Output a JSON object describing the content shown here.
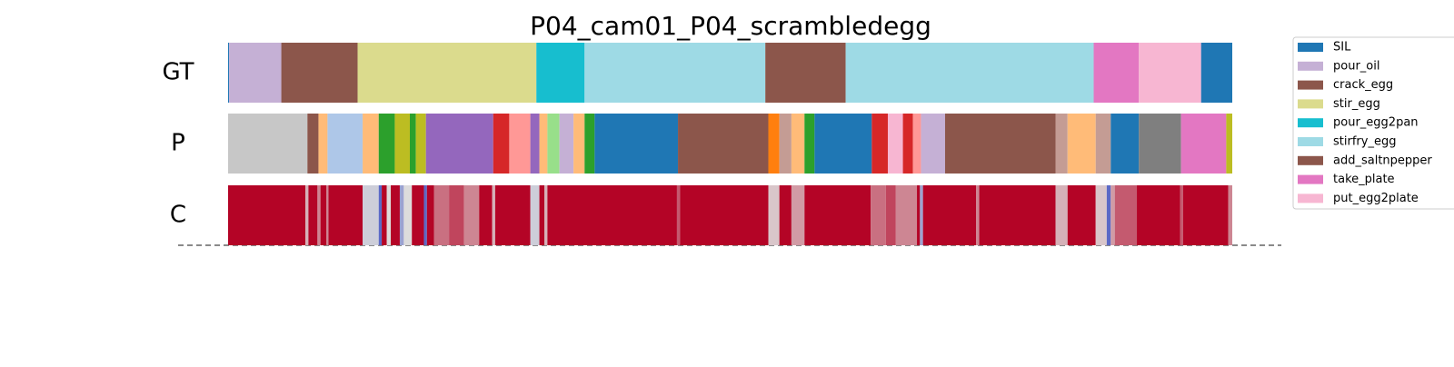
{
  "chart_data": {
    "type": "segmentation",
    "title": "P04_cam01_P04_scrambledegg",
    "xlim": [
      0,
      100
    ],
    "legend": [
      {
        "name": "SIL",
        "color": "#1f77b4"
      },
      {
        "name": "pour_oil",
        "color": "#c5b0d5"
      },
      {
        "name": "crack_egg",
        "color": "#8c564b"
      },
      {
        "name": "stir_egg",
        "color": "#dbdb8d"
      },
      {
        "name": "pour_egg2pan",
        "color": "#17becf"
      },
      {
        "name": "stirfry_egg",
        "color": "#9edae5"
      },
      {
        "name": "add_saltnpepper",
        "color": "#8c564b"
      },
      {
        "name": "take_plate",
        "color": "#e377c2"
      },
      {
        "name": "put_egg2plate",
        "color": "#f7b6d2"
      }
    ],
    "rows": [
      {
        "label": "GT",
        "segments": [
          {
            "start": 0,
            "end": 0.1,
            "class": 0
          },
          {
            "start": 0.1,
            "end": 5.3,
            "class": 1
          },
          {
            "start": 5.3,
            "end": 12.9,
            "class": 2
          },
          {
            "start": 12.9,
            "end": 30.7,
            "class": 3
          },
          {
            "start": 30.7,
            "end": 35.5,
            "class": 4
          },
          {
            "start": 35.5,
            "end": 53.5,
            "class": 5
          },
          {
            "start": 53.5,
            "end": 61.5,
            "class": 6
          },
          {
            "start": 61.5,
            "end": 86.2,
            "class": 5
          },
          {
            "start": 86.2,
            "end": 90.7,
            "class": 7
          },
          {
            "start": 90.7,
            "end": 96.9,
            "class": 8
          },
          {
            "start": 96.9,
            "end": 100,
            "class": 0
          }
        ]
      },
      {
        "label": "P",
        "segments": [
          {
            "start": 0,
            "end": 7.9,
            "color": "#c7c7c7"
          },
          {
            "start": 7.9,
            "end": 9.0,
            "color": "#8c564b"
          },
          {
            "start": 9.0,
            "end": 9.9,
            "color": "#ffbb78"
          },
          {
            "start": 9.9,
            "end": 13.4,
            "color": "#aec7e8"
          },
          {
            "start": 13.4,
            "end": 15.0,
            "color": "#ffbb78"
          },
          {
            "start": 15.0,
            "end": 16.6,
            "color": "#2ca02c"
          },
          {
            "start": 16.6,
            "end": 18.1,
            "color": "#bcbd22"
          },
          {
            "start": 18.1,
            "end": 18.7,
            "color": "#2ca02c"
          },
          {
            "start": 18.7,
            "end": 19.7,
            "color": "#bcbd22"
          },
          {
            "start": 19.7,
            "end": 26.4,
            "color": "#9467bd"
          },
          {
            "start": 26.4,
            "end": 28.0,
            "color": "#d62728"
          },
          {
            "start": 28.0,
            "end": 30.1,
            "color": "#ff9896"
          },
          {
            "start": 30.1,
            "end": 31.0,
            "color": "#9467bd"
          },
          {
            "start": 31.0,
            "end": 31.8,
            "color": "#ffbb78"
          },
          {
            "start": 31.8,
            "end": 33.0,
            "color": "#98df8a"
          },
          {
            "start": 33.0,
            "end": 34.4,
            "color": "#c5b0d5"
          },
          {
            "start": 34.4,
            "end": 35.5,
            "color": "#ffbb78"
          },
          {
            "start": 35.5,
            "end": 36.5,
            "color": "#2ca02c"
          },
          {
            "start": 36.5,
            "end": 44.8,
            "color": "#1f77b4"
          },
          {
            "start": 44.8,
            "end": 53.8,
            "color": "#8c564b"
          },
          {
            "start": 53.8,
            "end": 54.9,
            "color": "#ff7f0e"
          },
          {
            "start": 54.9,
            "end": 56.1,
            "color": "#c49c94"
          },
          {
            "start": 56.1,
            "end": 57.4,
            "color": "#ffbb78"
          },
          {
            "start": 57.4,
            "end": 58.4,
            "color": "#2ca02c"
          },
          {
            "start": 58.4,
            "end": 64.1,
            "color": "#1f77b4"
          },
          {
            "start": 64.1,
            "end": 65.7,
            "color": "#d62728"
          },
          {
            "start": 65.7,
            "end": 67.2,
            "color": "#f7b6d2"
          },
          {
            "start": 67.2,
            "end": 68.2,
            "color": "#d62728"
          },
          {
            "start": 68.2,
            "end": 69.0,
            "color": "#ff9896"
          },
          {
            "start": 69.0,
            "end": 71.4,
            "color": "#c5b0d5"
          },
          {
            "start": 71.4,
            "end": 82.4,
            "color": "#8c564b"
          },
          {
            "start": 82.4,
            "end": 83.6,
            "color": "#c49c94"
          },
          {
            "start": 83.6,
            "end": 86.4,
            "color": "#ffbb78"
          },
          {
            "start": 86.4,
            "end": 87.9,
            "color": "#c49c94"
          },
          {
            "start": 87.9,
            "end": 90.7,
            "color": "#1f77b4"
          },
          {
            "start": 90.7,
            "end": 94.9,
            "color": "#7f7f7f"
          },
          {
            "start": 94.9,
            "end": 99.4,
            "color": "#e377c2"
          },
          {
            "start": 99.4,
            "end": 100,
            "color": "#bcbd22"
          }
        ]
      },
      {
        "label": "C",
        "confidence": {
          "x": [
            0,
            7.7,
            8.0,
            8.9,
            9.2,
            9.8,
            10.0,
            13.4,
            15.0,
            15.3,
            15.8,
            16.2,
            17.1,
            17.5,
            18.3,
            19.5,
            19.8,
            20.5,
            22.0,
            23.5,
            25.0,
            26.3,
            26.6,
            30.1,
            31.0,
            31.5,
            31.8,
            44.7,
            45.0,
            53.8,
            54.9,
            56.1,
            57.4,
            64.0,
            65.5,
            66.5,
            68.6,
            68.9,
            69.2,
            74.5,
            74.8,
            82.4,
            83.6,
            86.4,
            87.5,
            87.9,
            88.3,
            90.5,
            94.8,
            95.1,
            99.6
          ],
          "values": [
            1,
            0.6,
            1,
            0.7,
            1,
            0.7,
            1,
            0.45,
            0.1,
            1,
            0.5,
            1,
            0.3,
            0.5,
            1,
            0.1,
            1,
            0.75,
            0.85,
            0.7,
            1,
            0.6,
            1,
            0.45,
            1,
            0.6,
            1,
            0.8,
            1,
            0.55,
            1,
            0.65,
            1,
            0.75,
            0.85,
            0.7,
            1,
            0.3,
            1,
            0.7,
            1,
            0.6,
            1,
            0.55,
            0.1,
            0.65,
            0.8,
            1,
            0.8,
            1,
            0.7
          ]
        }
      }
    ]
  }
}
